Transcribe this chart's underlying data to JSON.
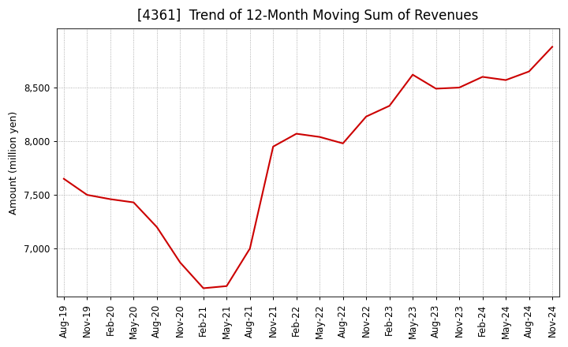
{
  "title": "[4361]  Trend of 12-Month Moving Sum of Revenues",
  "ylabel": "Amount (million yen)",
  "line_color": "#CC0000",
  "background_color": "#FFFFFF",
  "grid_color": "#999999",
  "x_labels": [
    "Aug-19",
    "Nov-19",
    "Feb-20",
    "May-20",
    "Aug-20",
    "Nov-20",
    "Feb-21",
    "May-21",
    "Aug-21",
    "Nov-21",
    "Feb-22",
    "May-22",
    "Aug-22",
    "Nov-22",
    "Feb-23",
    "May-23",
    "Aug-23",
    "Nov-23",
    "Feb-24",
    "May-24",
    "Aug-24",
    "Nov-24"
  ],
  "values": [
    7650,
    7500,
    7460,
    7430,
    7200,
    6870,
    6630,
    6650,
    7000,
    7950,
    8070,
    8040,
    7980,
    8230,
    8330,
    8620,
    8490,
    8500,
    8600,
    8570,
    8650,
    8880
  ],
  "ylim_min": 6550,
  "ylim_max": 9050,
  "yticks": [
    7000,
    7500,
    8000,
    8500
  ],
  "title_fontsize": 12,
  "label_fontsize": 9,
  "tick_fontsize": 8.5
}
